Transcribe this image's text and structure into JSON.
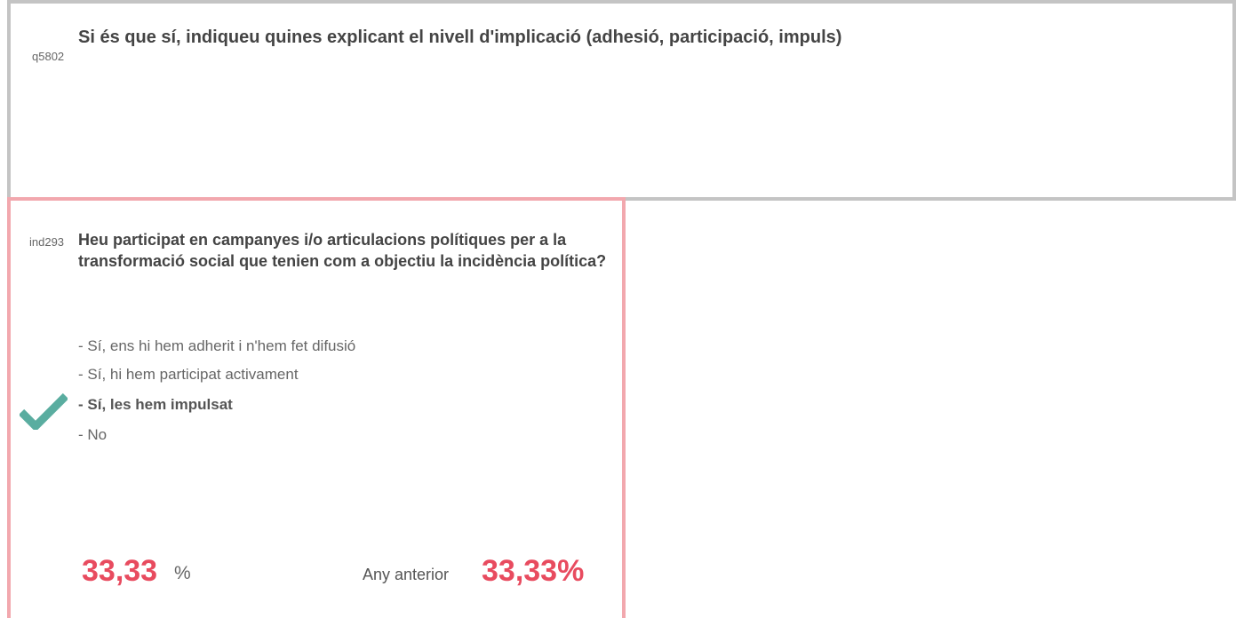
{
  "top_question": {
    "code": "q5802",
    "title": "Si és que sí, indiqueu quines explicant el nivell d'implicació (adhesió, participació, impuls)"
  },
  "card": {
    "code": "ind293",
    "question": "Heu participat en campanyes i/o articulacions polítiques per a la transformació social que tenien com a objectiu la incidència política?",
    "options": [
      "- Sí, ens hi hem adherit i n'hem fet difusió",
      "- Sí, hi hem participat activament",
      "- Sí, les hem impulsat",
      "- No"
    ],
    "selected_option": 2,
    "result": "33,33",
    "unit": "%",
    "previous_label": "Any anterior",
    "previous_result": "33,33%"
  }
}
